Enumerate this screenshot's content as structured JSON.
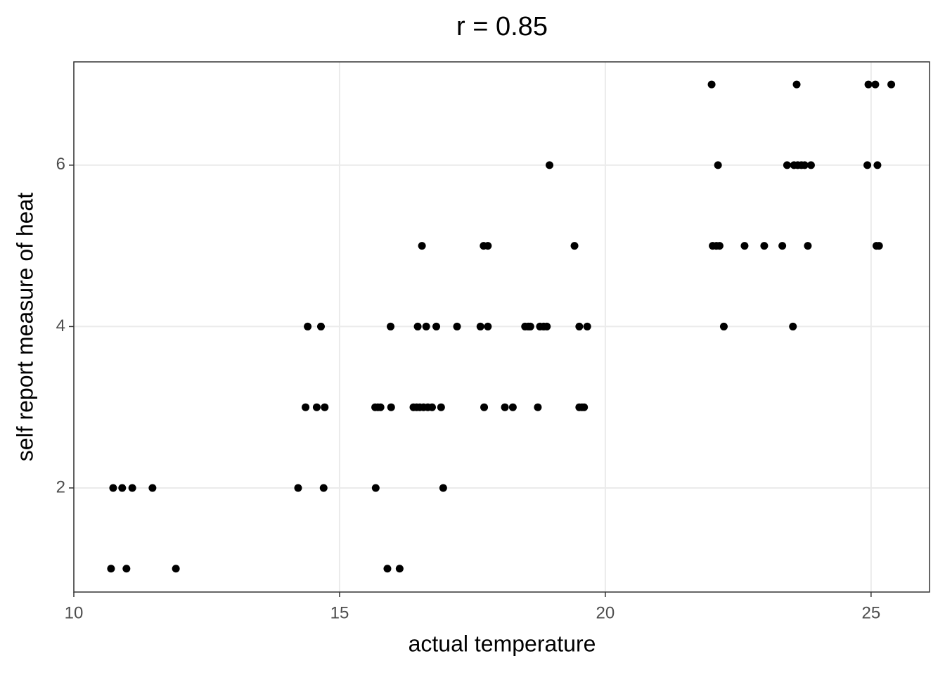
{
  "chart_data": {
    "type": "scatter",
    "title": "r = 0.85",
    "x_label": "actual temperature",
    "y_label": "self report measure of heat",
    "color": "#000000",
    "grid": true,
    "xlim": [
      10,
      26.1
    ],
    "ylim": [
      0.71,
      7.28
    ],
    "xticks": [
      10,
      15,
      20,
      25
    ],
    "yticks": [
      2,
      4,
      6
    ],
    "x": [
      22.0,
      23.6,
      24.95,
      25.08,
      25.38,
      18.95,
      22.12,
      23.42,
      23.55,
      23.62,
      23.69,
      23.75,
      23.87,
      24.93,
      25.12,
      16.55,
      17.71,
      17.79,
      19.42,
      22.02,
      22.09,
      22.15,
      22.62,
      22.99,
      23.33,
      23.81,
      25.1,
      25.15,
      14.4,
      14.65,
      15.96,
      16.47,
      16.63,
      16.82,
      17.21,
      17.65,
      17.79,
      18.49,
      18.55,
      18.59,
      18.77,
      18.84,
      18.9,
      19.51,
      19.66,
      22.23,
      23.53,
      14.36,
      14.57,
      14.72,
      15.67,
      15.72,
      15.77,
      15.97,
      16.39,
      16.45,
      16.51,
      16.58,
      16.66,
      16.74,
      16.91,
      17.72,
      18.11,
      18.26,
      18.73,
      19.51,
      19.56,
      19.6,
      10.74,
      10.91,
      11.1,
      11.48,
      14.22,
      14.7,
      15.68,
      16.95,
      10.7,
      10.99,
      11.92,
      15.9,
      16.13
    ],
    "y": [
      7,
      7,
      7,
      7,
      7,
      6,
      6,
      6,
      6,
      6,
      6,
      6,
      6,
      6,
      6,
      5,
      5,
      5,
      5,
      5,
      5,
      5,
      5,
      5,
      5,
      5,
      5,
      5,
      4,
      4,
      4,
      4,
      4,
      4,
      4,
      4,
      4,
      4,
      4,
      4,
      4,
      4,
      4,
      4,
      4,
      4,
      4,
      3,
      3,
      3,
      3,
      3,
      3,
      3,
      3,
      3,
      3,
      3,
      3,
      3,
      3,
      3,
      3,
      3,
      3,
      3,
      3,
      3,
      2,
      2,
      2,
      2,
      2,
      2,
      2,
      2,
      1,
      1,
      1,
      1,
      1
    ]
  }
}
